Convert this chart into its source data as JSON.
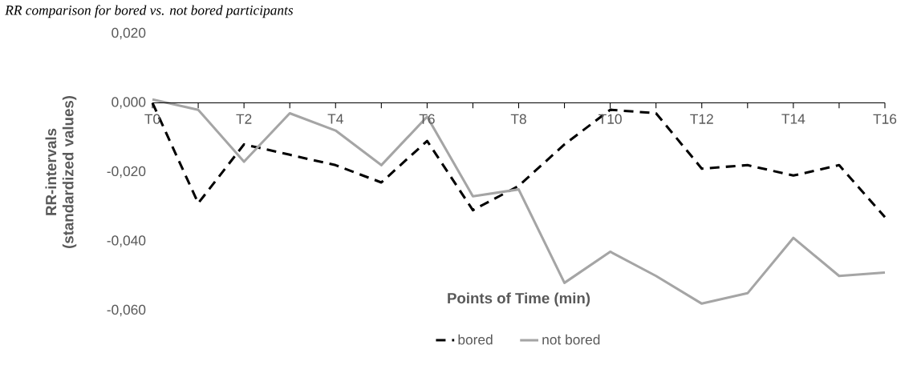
{
  "chart_data": {
    "type": "line",
    "title": "RR comparison for bored vs. not bored participants",
    "xlabel": "Points of Time (min)",
    "ylabel": "RR-intervals (standardized values)",
    "categories": [
      "T0",
      null,
      "T2",
      null,
      "T4",
      null,
      "T6",
      null,
      "T8",
      null,
      "T10",
      null,
      "T12",
      null,
      "T14",
      null,
      "T16"
    ],
    "series": [
      {
        "name": "bored",
        "color": "#000000",
        "line_style": "dashed",
        "values": [
          0.0,
          -0.029,
          -0.012,
          -0.015,
          -0.018,
          -0.023,
          -0.011,
          -0.031,
          -0.024,
          -0.012,
          -0.002,
          -0.003,
          -0.019,
          -0.018,
          -0.021,
          -0.018,
          -0.033
        ]
      },
      {
        "name": "not bored",
        "color": "#a5a5a5",
        "line_style": "solid",
        "values": [
          0.001,
          -0.002,
          -0.017,
          -0.003,
          -0.008,
          -0.018,
          -0.004,
          -0.027,
          -0.025,
          -0.052,
          -0.043,
          -0.05,
          -0.058,
          -0.055,
          -0.039,
          -0.05,
          -0.049
        ]
      }
    ],
    "ylim": [
      -0.06,
      0.02
    ],
    "yticks": [
      {
        "value": 0.02,
        "label": "0,020"
      },
      {
        "value": 0.0,
        "label": "0,000"
      },
      {
        "value": -0.02,
        "label": "-0,020"
      },
      {
        "value": -0.04,
        "label": "-0,040"
      },
      {
        "value": -0.06,
        "label": "-0,060"
      }
    ],
    "legend": "bottom"
  }
}
